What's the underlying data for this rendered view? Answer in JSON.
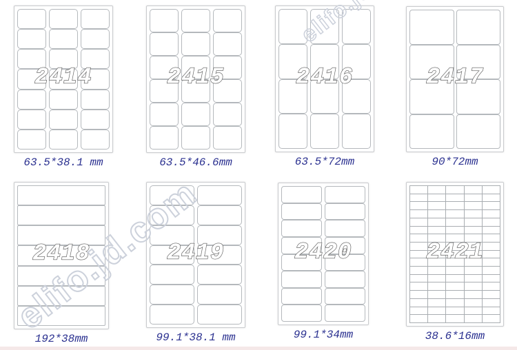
{
  "watermarks": [
    {
      "text": "elifo.jd.com"
    },
    {
      "text": "elifo.jd.com"
    }
  ],
  "colors": {
    "caption_text": "#2b3190",
    "watermark_outline": "#ccd1db",
    "code_outline": "#555555",
    "grid_line": "#b4b8bc"
  },
  "sheets": [
    {
      "code": "2414",
      "size": "63.5*38.1 mm",
      "cols": 3,
      "rows": 7,
      "mesh": false
    },
    {
      "code": "2415",
      "size": "63.5*46.6mm",
      "cols": 3,
      "rows": 6,
      "mesh": false
    },
    {
      "code": "2416",
      "size": "63.5*72mm",
      "cols": 3,
      "rows": 4,
      "mesh": false
    },
    {
      "code": "2417",
      "size": "90*72mm",
      "cols": 2,
      "rows": 4,
      "mesh": false
    },
    {
      "code": "2418",
      "size": "192*38mm",
      "cols": 1,
      "rows": 7,
      "mesh": false
    },
    {
      "code": "2419",
      "size": "99.1*38.1 mm",
      "cols": 2,
      "rows": 7,
      "mesh": false
    },
    {
      "code": "2420",
      "size": "99.1*34mm",
      "cols": 2,
      "rows": 8,
      "mesh": false
    },
    {
      "code": "2421",
      "size": "38.6*16mm",
      "cols": 5,
      "rows": 17,
      "mesh": true
    }
  ]
}
